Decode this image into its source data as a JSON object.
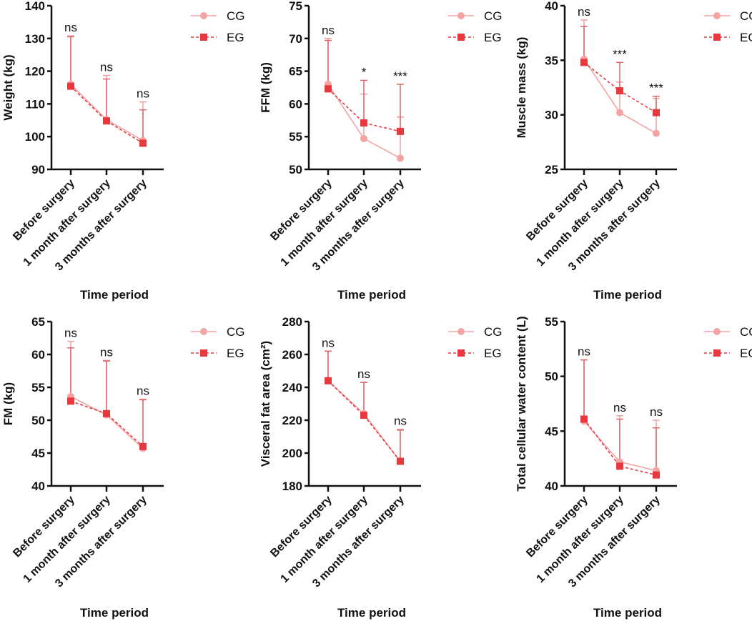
{
  "chart_data": [
    {
      "type": "line",
      "ylabel": "Weight (kg)",
      "xlabel": "Time period",
      "ylim": [
        90,
        140
      ],
      "yticks": [
        90,
        100,
        110,
        120,
        130,
        140
      ],
      "categories": [
        "Before surgery",
        "1 month after surgery",
        "3 months after surgery"
      ],
      "series": [
        {
          "name": "CG",
          "values": [
            116.0,
            105.2,
            98.8
          ],
          "error_upper": [
            130.8,
            118.7,
            110.6
          ]
        },
        {
          "name": "EG",
          "values": [
            115.4,
            104.8,
            98.0
          ],
          "error_upper": [
            130.5,
            117.6,
            108.2
          ]
        }
      ],
      "annotations": [
        "ns",
        "ns",
        "ns"
      ]
    },
    {
      "type": "line",
      "ylabel": "FFM (kg)",
      "xlabel": "Time period",
      "ylim": [
        50,
        75
      ],
      "yticks": [
        50,
        55,
        60,
        65,
        70,
        75
      ],
      "categories": [
        "Before surgery",
        "1 month after surgery",
        "3 months after surgery"
      ],
      "series": [
        {
          "name": "CG",
          "values": [
            63.0,
            54.7,
            51.7
          ],
          "error_upper": [
            70.0,
            61.5,
            58.0
          ]
        },
        {
          "name": "EG",
          "values": [
            62.3,
            57.1,
            55.8
          ],
          "error_upper": [
            69.7,
            63.6,
            63.0
          ]
        }
      ],
      "annotations": [
        "ns",
        "*",
        "***"
      ]
    },
    {
      "type": "line",
      "ylabel": "Muscle mass (kg)",
      "xlabel": "Time period",
      "ylim": [
        25,
        40
      ],
      "yticks": [
        25,
        30,
        35,
        40
      ],
      "categories": [
        "Before surgery",
        "1 month after surgery",
        "3 months after surgery"
      ],
      "series": [
        {
          "name": "CG",
          "values": [
            35.1,
            30.2,
            28.3
          ],
          "error_upper": [
            38.7,
            33.0,
            31.5
          ]
        },
        {
          "name": "EG",
          "values": [
            34.8,
            32.2,
            30.2
          ],
          "error_upper": [
            38.1,
            34.8,
            31.7
          ]
        }
      ],
      "annotations": [
        "ns",
        "***",
        "***"
      ]
    },
    {
      "type": "line",
      "ylabel": "FM (kg)",
      "xlabel": "Time period",
      "ylim": [
        40,
        65
      ],
      "yticks": [
        40,
        45,
        50,
        55,
        60,
        65
      ],
      "categories": [
        "Before surgery",
        "1 month after surgery",
        "3 months after surgery"
      ],
      "series": [
        {
          "name": "CG",
          "values": [
            53.6,
            50.8,
            45.7
          ],
          "error_upper": [
            62.0,
            59.1,
            53.2
          ]
        },
        {
          "name": "EG",
          "values": [
            52.9,
            51.0,
            46.0
          ],
          "error_upper": [
            61.0,
            59.0,
            53.1
          ]
        }
      ],
      "annotations": [
        "ns",
        "ns",
        "ns"
      ]
    },
    {
      "type": "line",
      "ylabel": "Visceral fat area (cm²)",
      "xlabel": "Time period",
      "ylim": [
        180,
        280
      ],
      "yticks": [
        180,
        200,
        220,
        240,
        260,
        280
      ],
      "categories": [
        "Before surgery",
        "1 month after surgery",
        "3 months after surgery"
      ],
      "series": [
        {
          "name": "CG",
          "values": [
            244,
            224,
            195
          ],
          "error_upper": [
            262,
            243,
            214.5
          ]
        },
        {
          "name": "EG",
          "values": [
            244,
            223,
            195
          ],
          "error_upper": [
            262,
            243,
            214
          ]
        }
      ],
      "annotations": [
        "ns",
        "ns",
        "ns"
      ]
    },
    {
      "type": "line",
      "ylabel": "Total cellular water content (L)",
      "xlabel": "Time period",
      "ylim": [
        40,
        55
      ],
      "yticks": [
        40,
        45,
        50,
        55
      ],
      "categories": [
        "Before surgery",
        "1 month after surgery",
        "3 months after surgery"
      ],
      "series": [
        {
          "name": "CG",
          "values": [
            45.9,
            42.2,
            41.4
          ],
          "error_upper": [
            51.5,
            46.4,
            46.0
          ]
        },
        {
          "name": "EG",
          "values": [
            46.1,
            41.8,
            41.0
          ],
          "error_upper": [
            51.5,
            46.1,
            45.3
          ]
        }
      ],
      "annotations": [
        "ns",
        "ns",
        "ns"
      ]
    }
  ],
  "colors": {
    "CG": "#f4a3a3",
    "EG": "#e8383d",
    "CG_err": "#f0a0a0",
    "EG_err": "#d9676b",
    "axis": "#111111"
  }
}
